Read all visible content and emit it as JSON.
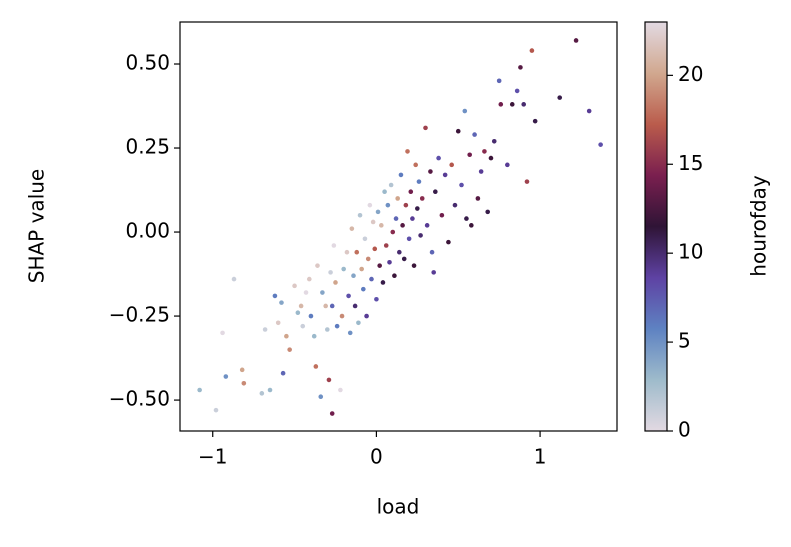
{
  "chart_data": {
    "type": "scatter",
    "xlabel": "load",
    "ylabel": "SHAP value",
    "xlim": [
      -1.2,
      1.47
    ],
    "ylim": [
      -0.592,
      0.625
    ],
    "xticks": [
      {
        "value": -1,
        "label": "−1"
      },
      0,
      1
    ],
    "yticks": [
      {
        "value": 0.5,
        "label": "0.50"
      },
      {
        "value": 0.25,
        "label": "0.25"
      },
      {
        "value": 0,
        "label": "0.00"
      },
      {
        "value": -0.25,
        "label": "−0.25"
      },
      {
        "value": -0.5,
        "label": "−0.50"
      }
    ],
    "x": [
      -1.08,
      -0.98,
      -0.94,
      -0.87,
      -0.92,
      -0.81,
      -0.82,
      -0.7,
      -0.68,
      -0.65,
      -0.62,
      -0.6,
      -0.58,
      -0.55,
      -0.53,
      -0.57,
      -0.5,
      -0.48,
      -0.46,
      -0.45,
      -0.43,
      -0.41,
      -0.4,
      -0.38,
      -0.37,
      -0.36,
      -0.34,
      -0.33,
      -0.31,
      -0.3,
      -0.29,
      -0.28,
      -0.27,
      -0.26,
      -0.25,
      -0.24,
      -0.22,
      -0.21,
      -0.2,
      -0.18,
      -0.17,
      -0.16,
      -0.15,
      -0.14,
      -0.13,
      -0.12,
      -0.11,
      -0.1,
      -0.09,
      -0.08,
      -0.07,
      -0.06,
      -0.05,
      -0.04,
      -0.03,
      -0.02,
      -0.01,
      0,
      0.01,
      0.02,
      0.03,
      0.04,
      0.05,
      0.06,
      0.07,
      0.08,
      0.09,
      0.1,
      0.11,
      0.12,
      0.13,
      0.14,
      0.15,
      0.16,
      0.17,
      0.18,
      0.19,
      0.2,
      0.21,
      0.22,
      0.23,
      0.24,
      0.25,
      0.26,
      0.27,
      0.28,
      0.3,
      0.31,
      0.33,
      0.34,
      0.36,
      0.38,
      0.4,
      0.42,
      0.44,
      0.46,
      0.48,
      0.5,
      0.52,
      0.54,
      0.55,
      0.57,
      0.6,
      0.62,
      0.64,
      0.66,
      0.68,
      0.7,
      0.72,
      0.75,
      0.76,
      0.8,
      0.83,
      0.86,
      0.88,
      0.9,
      0.92,
      0.95,
      1.12,
      1.22,
      1.3,
      1.37,
      0.97,
      0.58,
      0.35,
      -0.27
    ],
    "values": [
      -0.47,
      -0.53,
      -0.3,
      -0.14,
      -0.43,
      -0.45,
      -0.41,
      -0.48,
      -0.29,
      -0.47,
      -0.19,
      -0.27,
      -0.21,
      -0.31,
      -0.35,
      -0.42,
      -0.16,
      -0.24,
      -0.22,
      -0.28,
      -0.18,
      -0.14,
      -0.25,
      -0.31,
      -0.4,
      -0.1,
      -0.49,
      -0.18,
      -0.22,
      -0.29,
      -0.44,
      -0.12,
      -0.22,
      -0.04,
      -0.15,
      -0.28,
      -0.47,
      -0.25,
      -0.11,
      -0.06,
      -0.19,
      -0.3,
      0.01,
      -0.13,
      -0.22,
      -0.06,
      -0.27,
      0.05,
      -0.11,
      -0.17,
      -0.02,
      -0.25,
      -0.08,
      0.08,
      -0.14,
      0.03,
      -0.05,
      -0.2,
      0.06,
      -0.1,
      0.02,
      -0.15,
      0.12,
      -0.04,
      0.08,
      -0.09,
      0.14,
      0,
      -0.13,
      0.04,
      0.1,
      -0.06,
      0.17,
      0.02,
      -0.08,
      0.08,
      0.24,
      -0.02,
      0.12,
      0.04,
      -0.1,
      0.2,
      0.07,
      0.15,
      -0.01,
      0.1,
      0.31,
      0.02,
      0.18,
      -0.06,
      0.12,
      0.22,
      0.05,
      0.17,
      -0.03,
      0.2,
      0.08,
      0.3,
      0.14,
      0.36,
      0.04,
      0.23,
      0.29,
      0.1,
      0.18,
      0.24,
      0.06,
      0.22,
      0.27,
      0.45,
      0.38,
      0.2,
      0.38,
      0.42,
      0.49,
      0.38,
      0.15,
      0.54,
      0.4,
      0.57,
      0.36,
      0.26,
      0.33,
      0.02,
      -0.12,
      -0.54
    ],
    "color_values": [
      3,
      1,
      0,
      1,
      5,
      19,
      20,
      2,
      1,
      3,
      6,
      22,
      4,
      20,
      19,
      7,
      22,
      3,
      21,
      1,
      0,
      22,
      6,
      3,
      18,
      22,
      5,
      4,
      21,
      2,
      16,
      1,
      7,
      0,
      20,
      6,
      0,
      19,
      3,
      22,
      8,
      5,
      21,
      4,
      10,
      18,
      3,
      2,
      20,
      6,
      1,
      9,
      19,
      0,
      7,
      22,
      17,
      8,
      4,
      13,
      21,
      11,
      3,
      16,
      5,
      9,
      2,
      15,
      12,
      7,
      20,
      10,
      6,
      13,
      11,
      16,
      18,
      8,
      14,
      9,
      12,
      18,
      11,
      6,
      10,
      15,
      16,
      9,
      13,
      7,
      11,
      8,
      14,
      9,
      12,
      17,
      10,
      12,
      8,
      5,
      11,
      14,
      7,
      13,
      9,
      15,
      11,
      12,
      10,
      7,
      14,
      9,
      12,
      8,
      13,
      10,
      16,
      17,
      11,
      13,
      9,
      8,
      11,
      12,
      9,
      14
    ],
    "colorbar": {
      "label": "hourofday",
      "lim": [
        0,
        23
      ],
      "ticks": [
        0,
        5,
        10,
        15,
        20
      ],
      "colormap": [
        "#e2d9e2",
        "#9ebbcb",
        "#5e82c2",
        "#5e42a3",
        "#2f1436",
        "#7a1f4f",
        "#ba5c4c",
        "#d1a88f",
        "#e2d9e2"
      ]
    }
  }
}
